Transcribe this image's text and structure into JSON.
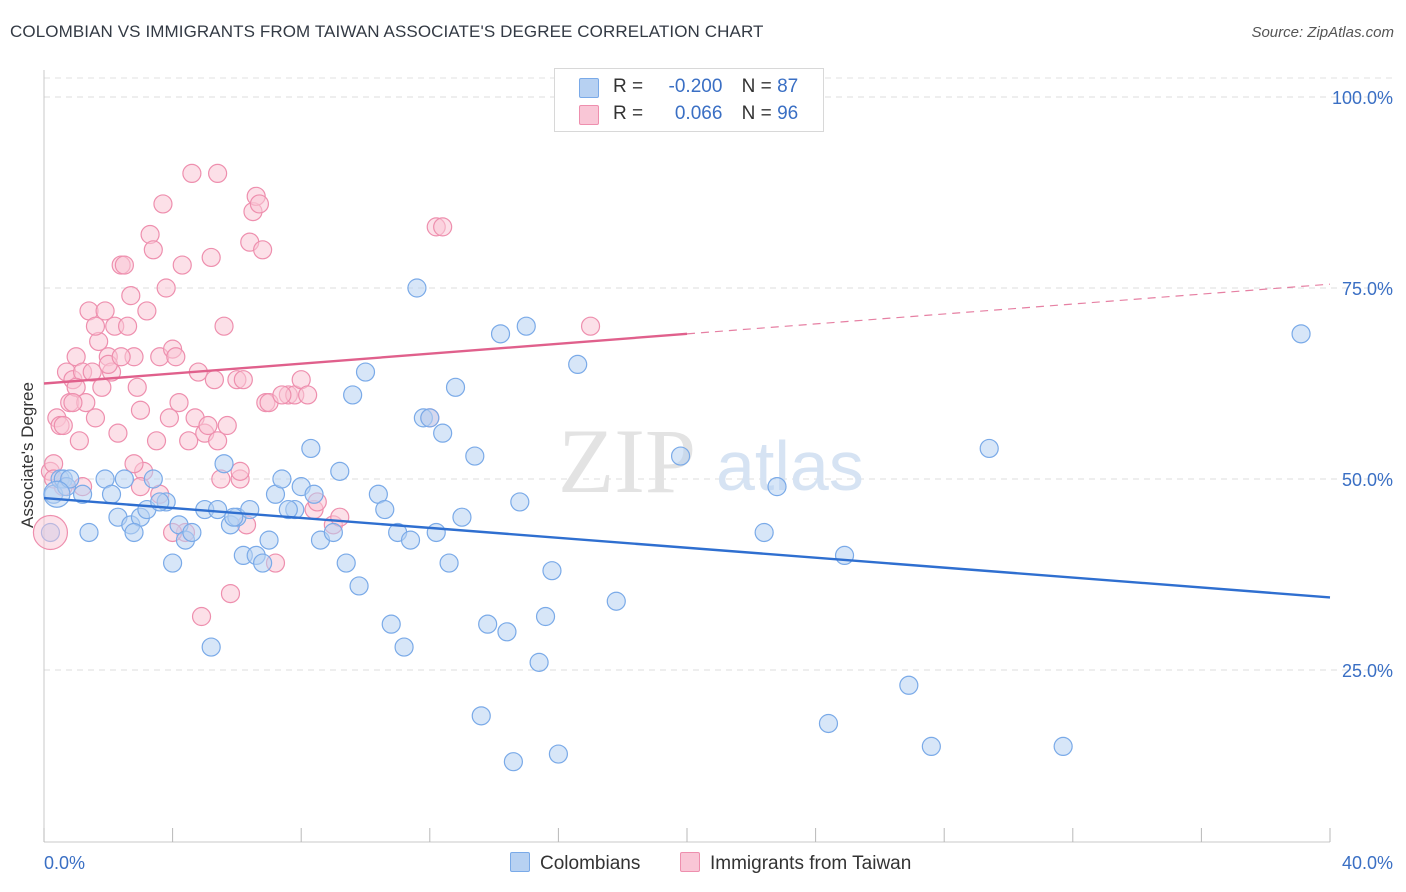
{
  "title": "COLOMBIAN VS IMMIGRANTS FROM TAIWAN ASSOCIATE'S DEGREE CORRELATION CHART",
  "source": "Source: ZipAtlas.com",
  "watermark": {
    "zip": "ZIP",
    "atlas": "atlas"
  },
  "legend": {
    "rows": [
      {
        "r_label": "R =",
        "r_value": "-0.200",
        "n_label": "N =",
        "n_value": "87",
        "color": "#a8c8f0"
      },
      {
        "r_label": "R =",
        "r_value": "0.066",
        "n_label": "N =",
        "n_value": "96",
        "color": "#f7b8cd"
      }
    ]
  },
  "bottom_legend": [
    "Colombians",
    "Immigrants from Taiwan"
  ],
  "chart_data": {
    "type": "scatter",
    "title": "COLOMBIAN VS IMMIGRANTS FROM TAIWAN ASSOCIATE'S DEGREE CORRELATION CHART",
    "xlabel": "",
    "ylabel": "Associate's Degree",
    "xlim": [
      0,
      40
    ],
    "ylim": [
      0,
      105
    ],
    "x_tick_labels": [
      "0.0%",
      "40.0%"
    ],
    "y_tick_labels": [
      "25.0%",
      "50.0%",
      "75.0%",
      "100.0%"
    ],
    "y_ticks": [
      25,
      50,
      75,
      100
    ],
    "grid": true,
    "legend_position": "top-center",
    "series": [
      {
        "name": "Colombians",
        "color": "#7aaae8",
        "fill": "#b7d1f2",
        "trend": {
          "x0": 0,
          "y0": 47.5,
          "x1": 40,
          "y1": 34.5,
          "dashed_from": null
        },
        "points": [
          [
            0.2,
            43
          ],
          [
            0.3,
            48
          ],
          [
            0.5,
            50
          ],
          [
            0.6,
            50
          ],
          [
            0.7,
            49
          ],
          [
            0.8,
            50
          ],
          [
            1.2,
            48
          ],
          [
            1.4,
            43
          ],
          [
            1.9,
            50
          ],
          [
            2.1,
            48
          ],
          [
            2.3,
            45
          ],
          [
            2.5,
            50
          ],
          [
            2.7,
            44
          ],
          [
            3.0,
            45
          ],
          [
            3.2,
            46
          ],
          [
            3.4,
            50
          ],
          [
            3.8,
            47
          ],
          [
            4.0,
            39
          ],
          [
            4.2,
            44
          ],
          [
            4.4,
            42
          ],
          [
            4.6,
            43
          ],
          [
            5.0,
            46
          ],
          [
            5.2,
            28
          ],
          [
            5.4,
            46
          ],
          [
            5.6,
            52
          ],
          [
            5.8,
            44
          ],
          [
            6.0,
            45
          ],
          [
            6.2,
            40
          ],
          [
            6.4,
            46
          ],
          [
            6.6,
            40
          ],
          [
            6.8,
            39
          ],
          [
            7.0,
            42
          ],
          [
            7.2,
            48
          ],
          [
            7.4,
            50
          ],
          [
            7.8,
            46
          ],
          [
            8.0,
            49
          ],
          [
            8.3,
            54
          ],
          [
            8.4,
            48
          ],
          [
            8.6,
            42
          ],
          [
            9.0,
            43
          ],
          [
            9.2,
            51
          ],
          [
            9.4,
            39
          ],
          [
            9.6,
            61
          ],
          [
            9.8,
            36
          ],
          [
            10.0,
            64
          ],
          [
            10.4,
            48
          ],
          [
            10.6,
            46
          ],
          [
            10.8,
            31
          ],
          [
            11.0,
            43
          ],
          [
            11.2,
            28
          ],
          [
            11.4,
            42
          ],
          [
            11.6,
            75
          ],
          [
            11.8,
            58
          ],
          [
            12.0,
            58
          ],
          [
            12.4,
            56
          ],
          [
            12.6,
            39
          ],
          [
            12.8,
            62
          ],
          [
            13.0,
            45
          ],
          [
            13.4,
            53
          ],
          [
            13.6,
            19
          ],
          [
            13.8,
            31
          ],
          [
            14.2,
            69
          ],
          [
            14.4,
            30
          ],
          [
            14.6,
            13
          ],
          [
            14.8,
            47
          ],
          [
            15.0,
            70
          ],
          [
            15.4,
            26
          ],
          [
            15.6,
            32
          ],
          [
            15.8,
            38
          ],
          [
            16.0,
            14
          ],
          [
            16.6,
            65
          ],
          [
            17.8,
            34
          ],
          [
            19.8,
            53
          ],
          [
            22.4,
            43
          ],
          [
            22.8,
            49
          ],
          [
            24.4,
            18
          ],
          [
            24.9,
            40
          ],
          [
            26.9,
            23
          ],
          [
            27.6,
            15
          ],
          [
            29.4,
            54
          ],
          [
            31.7,
            15
          ],
          [
            39.1,
            69
          ],
          [
            2.8,
            43
          ],
          [
            3.6,
            47
          ],
          [
            7.6,
            46
          ],
          [
            12.2,
            43
          ],
          [
            5.9,
            45
          ]
        ]
      },
      {
        "name": "Immigrants from Taiwan",
        "color": "#ee8fae",
        "fill": "#f9c6d6",
        "trend": {
          "x0": 0,
          "y0": 62.5,
          "x1": 40,
          "y1": 75.5,
          "dashed_from": 20
        },
        "points": [
          [
            0.2,
            51
          ],
          [
            0.3,
            52
          ],
          [
            0.4,
            58
          ],
          [
            0.5,
            57
          ],
          [
            0.6,
            49
          ],
          [
            0.7,
            64
          ],
          [
            0.8,
            60
          ],
          [
            0.9,
            63
          ],
          [
            1.0,
            66
          ],
          [
            1.1,
            55
          ],
          [
            1.2,
            64
          ],
          [
            1.3,
            60
          ],
          [
            1.4,
            72
          ],
          [
            1.5,
            64
          ],
          [
            1.6,
            58
          ],
          [
            1.7,
            68
          ],
          [
            1.8,
            62
          ],
          [
            1.9,
            72
          ],
          [
            2.0,
            66
          ],
          [
            2.1,
            64
          ],
          [
            2.2,
            70
          ],
          [
            2.3,
            56
          ],
          [
            2.4,
            78
          ],
          [
            2.5,
            78
          ],
          [
            2.6,
            70
          ],
          [
            2.7,
            74
          ],
          [
            2.8,
            66
          ],
          [
            2.9,
            62
          ],
          [
            3.0,
            59
          ],
          [
            3.1,
            51
          ],
          [
            3.2,
            72
          ],
          [
            3.3,
            82
          ],
          [
            3.4,
            80
          ],
          [
            3.5,
            55
          ],
          [
            3.6,
            66
          ],
          [
            3.7,
            86
          ],
          [
            3.8,
            75
          ],
          [
            3.9,
            58
          ],
          [
            4.0,
            67
          ],
          [
            4.1,
            66
          ],
          [
            4.2,
            60
          ],
          [
            4.3,
            78
          ],
          [
            4.4,
            43
          ],
          [
            4.5,
            55
          ],
          [
            4.6,
            90
          ],
          [
            4.7,
            58
          ],
          [
            4.8,
            64
          ],
          [
            4.9,
            32
          ],
          [
            5.0,
            56
          ],
          [
            5.1,
            57
          ],
          [
            5.2,
            79
          ],
          [
            5.3,
            63
          ],
          [
            5.4,
            90
          ],
          [
            5.5,
            50
          ],
          [
            5.6,
            70
          ],
          [
            5.7,
            57
          ],
          [
            5.8,
            35
          ],
          [
            6.0,
            63
          ],
          [
            6.1,
            50
          ],
          [
            6.2,
            63
          ],
          [
            6.3,
            44
          ],
          [
            6.4,
            81
          ],
          [
            6.5,
            85
          ],
          [
            6.6,
            87
          ],
          [
            6.7,
            86
          ],
          [
            6.8,
            80
          ],
          [
            6.9,
            60
          ],
          [
            7.0,
            60
          ],
          [
            7.2,
            39
          ],
          [
            7.6,
            61
          ],
          [
            7.8,
            61
          ],
          [
            8.0,
            63
          ],
          [
            8.2,
            61
          ],
          [
            8.4,
            46
          ],
          [
            9.0,
            44
          ],
          [
            9.2,
            45
          ],
          [
            12.0,
            58
          ],
          [
            12.2,
            83
          ],
          [
            12.4,
            83
          ],
          [
            17.0,
            70
          ],
          [
            0.3,
            50
          ],
          [
            1.0,
            62
          ],
          [
            1.6,
            70
          ],
          [
            2.0,
            65
          ],
          [
            2.4,
            66
          ],
          [
            3.0,
            49
          ],
          [
            4.0,
            43
          ],
          [
            1.2,
            49
          ],
          [
            0.6,
            57
          ],
          [
            0.9,
            60
          ],
          [
            2.8,
            52
          ],
          [
            3.6,
            48
          ],
          [
            5.4,
            55
          ],
          [
            6.1,
            51
          ],
          [
            7.4,
            61
          ],
          [
            8.5,
            47
          ]
        ]
      }
    ]
  }
}
